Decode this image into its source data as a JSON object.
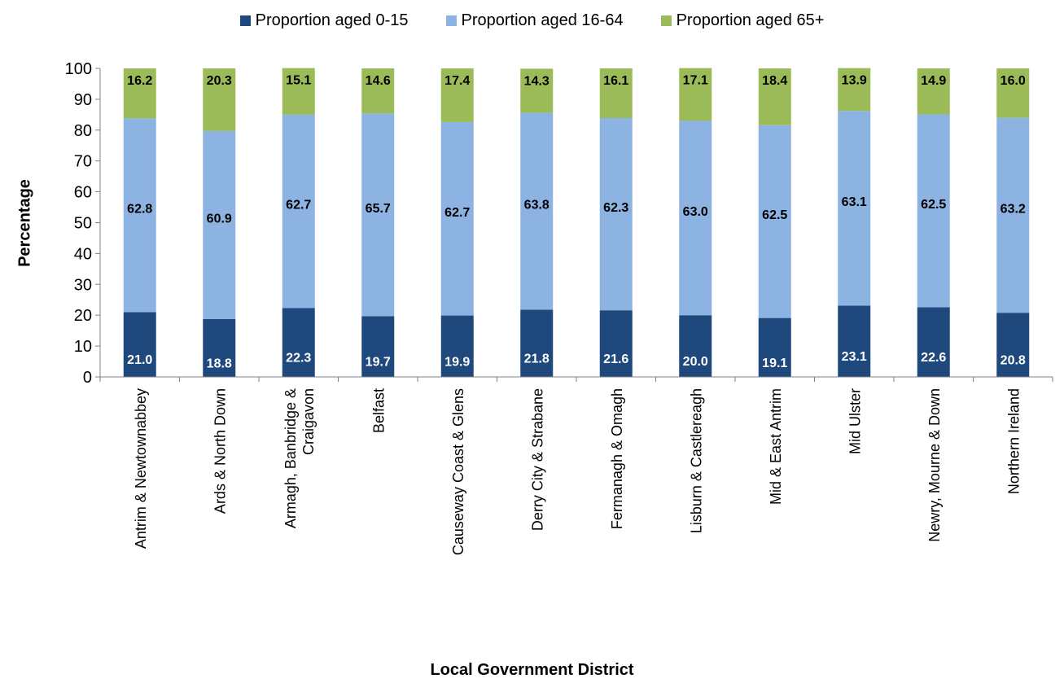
{
  "chart_data": {
    "type": "bar",
    "stacked": true,
    "title": "",
    "xlabel": "Local Government District",
    "ylabel": "Percentage",
    "ylim": [
      0,
      100
    ],
    "yticks": [
      0,
      10,
      20,
      30,
      40,
      50,
      60,
      70,
      80,
      90,
      100
    ],
    "grid": false,
    "legend_position": "top",
    "categories": [
      [
        "Antrim & Newtownabbey"
      ],
      [
        "Ards & North Down"
      ],
      [
        "Armagh, Banbridge &",
        "Craigavon"
      ],
      [
        "Belfast"
      ],
      [
        "Causeway Coast & Glens"
      ],
      [
        "Derry City & Strabane"
      ],
      [
        "Fermanagh & Omagh"
      ],
      [
        "Lisburn & Castlereagh"
      ],
      [
        "Mid & East Antrim"
      ],
      [
        "Mid Ulster"
      ],
      [
        "Newry, Mourne & Down"
      ],
      [
        "Northern Ireland"
      ]
    ],
    "series": [
      {
        "name": "Proportion aged 0-15",
        "color": "#1F497D",
        "label_color": "#FFFFFF",
        "values": [
          "21.0",
          "18.8",
          "22.3",
          "19.7",
          "19.9",
          "21.8",
          "21.6",
          "20.0",
          "19.1",
          "23.1",
          "22.6",
          "20.8"
        ]
      },
      {
        "name": "Proportion aged 16-64",
        "color": "#8DB3E2",
        "label_color": "#000000",
        "values": [
          "62.8",
          "60.9",
          "62.7",
          "65.7",
          "62.7",
          "63.8",
          "62.3",
          "63.0",
          "62.5",
          "63.1",
          "62.5",
          "63.2"
        ]
      },
      {
        "name": "Proportion aged 65+",
        "color": "#9BBB59",
        "label_color": "#000000",
        "values": [
          "16.2",
          "20.3",
          "15.1",
          "14.6",
          "17.4",
          "14.3",
          "16.1",
          "17.1",
          "18.4",
          "13.9",
          "14.9",
          "16.0"
        ]
      }
    ]
  }
}
